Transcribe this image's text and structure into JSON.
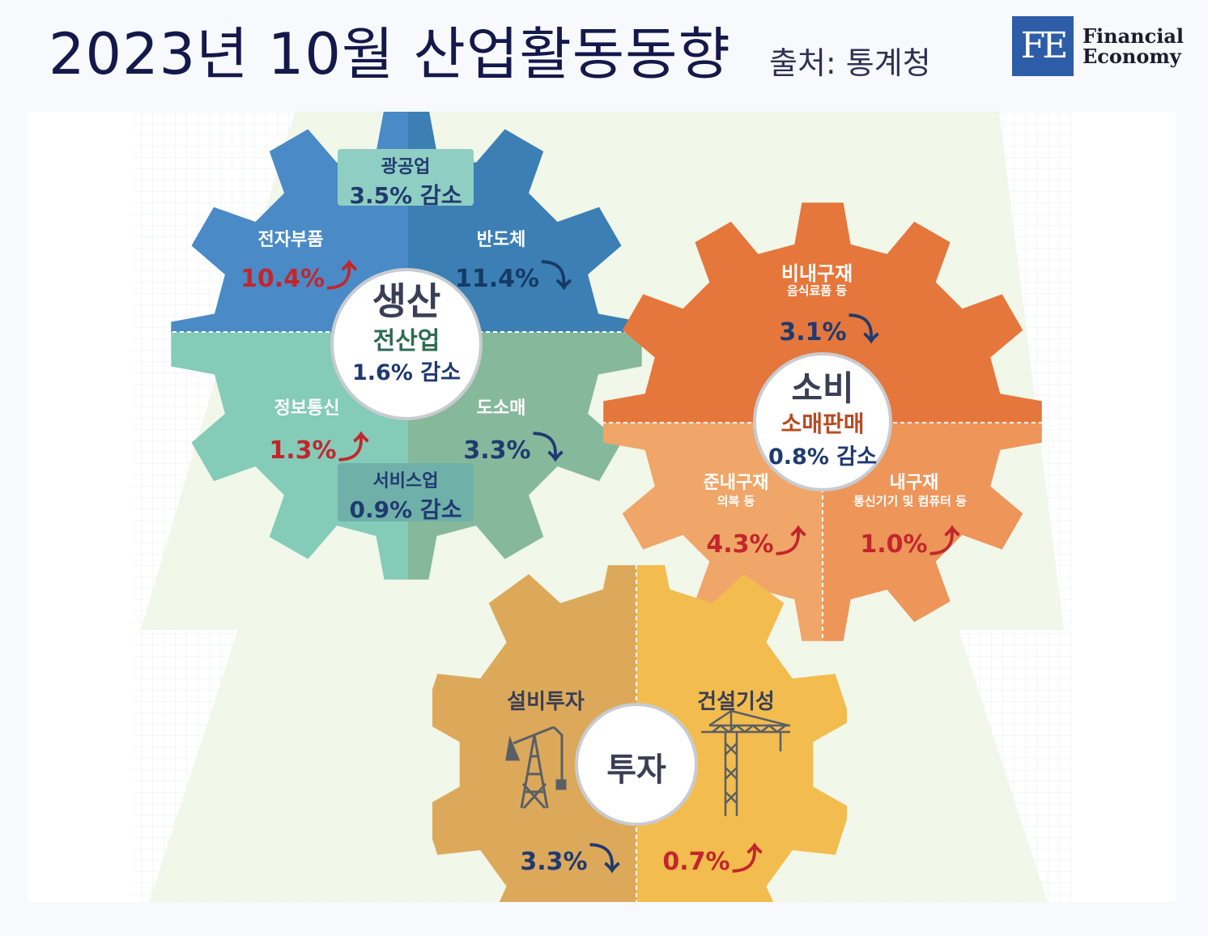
{
  "header": {
    "title": "2023년 10월 산업활동동향",
    "source": "출처: 통계청",
    "logo_mark": "FE",
    "logo_line1": "Financial",
    "logo_line2": "Economy"
  },
  "production": {
    "title": "생산",
    "center_sub": "전산업",
    "center_change": "1.6% 감소",
    "mining": {
      "label": "광공업",
      "change": "3.5% 감소"
    },
    "services": {
      "label": "서비스업",
      "change": "0.9% 감소"
    },
    "electronic_parts": {
      "label": "전자부품",
      "value": "10.4%",
      "direction": "up"
    },
    "semiconductor": {
      "label": "반도체",
      "value": "11.4%",
      "direction": "down"
    },
    "info_comm": {
      "label": "정보통신",
      "value": "1.3%",
      "direction": "up"
    },
    "wholesale_retail": {
      "label": "도소매",
      "value": "3.3%",
      "direction": "down"
    },
    "colors": {
      "top_left": "#4a8ac6",
      "top_right": "#3c7fb4",
      "bottom_left": "#84cbb8",
      "bottom_right": "#86b99b"
    }
  },
  "consumption": {
    "title": "소비",
    "center_sub": "소매판매",
    "center_change": "0.8% 감소",
    "nondurable": {
      "label": "비내구재",
      "sub": "음식료품 등",
      "value": "3.1%",
      "direction": "down"
    },
    "semidurable": {
      "label": "준내구재",
      "sub": "의복 등",
      "value": "4.3%",
      "direction": "up"
    },
    "durable": {
      "label": "내구재",
      "sub": "통신기기 및 컴퓨터 등",
      "value": "1.0%",
      "direction": "up"
    },
    "colors": {
      "top": "#e5773c",
      "bottom_left": "#f0a668",
      "bottom_right": "#ee955a"
    }
  },
  "investment": {
    "title": "투자",
    "equipment": {
      "label": "설비투자",
      "value": "3.3%",
      "direction": "down"
    },
    "construction": {
      "label": "건설기성",
      "value": "0.7%",
      "direction": "up"
    },
    "colors": {
      "left": "#dca95b",
      "right": "#f3bc4e"
    }
  },
  "icons": {
    "up_arrow": "⤴",
    "down_arrow": "⤵"
  }
}
